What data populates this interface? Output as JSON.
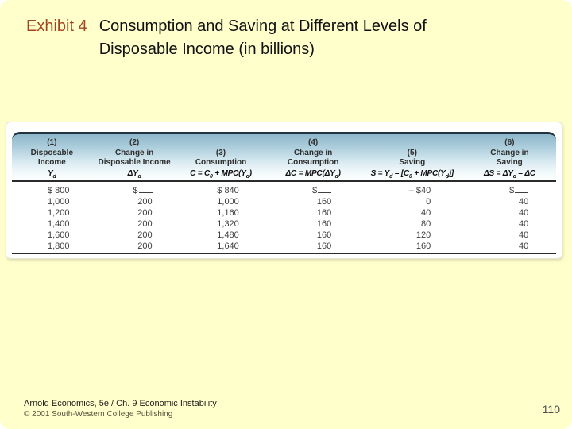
{
  "title": {
    "exhibit": "Exhibit 4",
    "line1": "Consumption and Saving at Different Levels of",
    "line2": "Disposable Income (in billions)"
  },
  "table": {
    "columns": [
      {
        "number": "(1)",
        "lines": [
          "Disposable",
          "Income"
        ],
        "formula": "Y_{d}"
      },
      {
        "number": "(2)",
        "lines": [
          "Change in",
          "Disposable Income"
        ],
        "formula": "ΔY_{d}"
      },
      {
        "number": "(3)",
        "lines": [
          "Consumption"
        ],
        "formula": "C = C_{0} + MPC(Y_{d})"
      },
      {
        "number": "(4)",
        "lines": [
          "Change in",
          "Consumption"
        ],
        "formula": "ΔC = MPC(ΔY_{d})"
      },
      {
        "number": "(5)",
        "lines": [
          "Saving"
        ],
        "formula": "S = Y_{d} – [C_{0} + MPC(Y_{d})]"
      },
      {
        "number": "(6)",
        "lines": [
          "Change in",
          "Saving"
        ],
        "formula": "ΔS = ΔY_{d} – ΔC"
      }
    ],
    "rows": [
      [
        "$ 800",
        "$ ___",
        "$ 840",
        "$ ___",
        "– $40",
        "$ ___"
      ],
      [
        "1,000",
        "200",
        "1,000",
        "160",
        "0",
        "40"
      ],
      [
        "1,200",
        "200",
        "1,160",
        "160",
        "40",
        "40"
      ],
      [
        "1,400",
        "200",
        "1,320",
        "160",
        "80",
        "40"
      ],
      [
        "1,600",
        "200",
        "1,480",
        "160",
        "120",
        "40"
      ],
      [
        "1,800",
        "200",
        "1,640",
        "160",
        "160",
        "40"
      ]
    ]
  },
  "footer": {
    "line1": "Arnold Economics, 5e / Ch. 9  Economic Instability",
    "line2": "© 2001 South-Western College Publishing",
    "page_number": "110"
  },
  "colors": {
    "slide_background": "#FFFFCC",
    "exhibit_label": "#A2441F",
    "header_gradient_top": "#8DB7CA",
    "header_gradient_bottom": "#FDFEFE",
    "header_top_border": "#223240",
    "rule": "#2b2b2b",
    "copyright_text": "#55553F"
  }
}
